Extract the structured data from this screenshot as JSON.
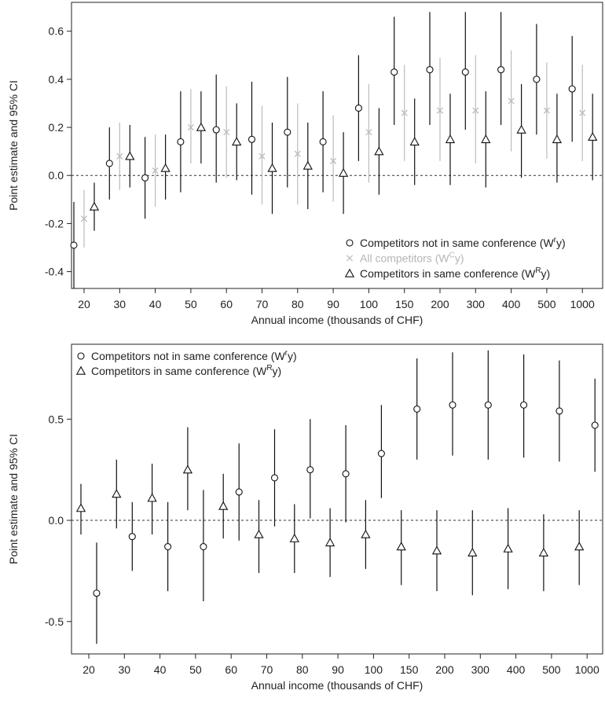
{
  "chart_data": [
    {
      "type": "errorbar",
      "xlabel": "Annual income (thousands of CHF)",
      "ylabel": "Point estimate and 95% CI",
      "ylim": [
        -0.47,
        0.72
      ],
      "yticks": [
        "-0.4",
        "-0.2",
        "0.0",
        "0.2",
        "0.4",
        "0.6"
      ],
      "categories": [
        "20",
        "30",
        "40",
        "50",
        "60",
        "70",
        "80",
        "90",
        "100",
        "150",
        "200",
        "300",
        "400",
        "500",
        "1000"
      ],
      "reference_line": 0,
      "legend_position": "bottom-right",
      "series": [
        {
          "name": "Competitors not in same conference (W",
          "name_sup": "r",
          "name_end": "y)",
          "marker": "circle",
          "color": "#111111",
          "estimate": [
            -0.29,
            0.05,
            -0.01,
            0.14,
            0.19,
            0.15,
            0.18,
            0.14,
            0.28,
            0.43,
            0.44,
            0.43,
            0.44,
            0.4,
            0.36
          ],
          "lower": [
            -0.47,
            -0.1,
            -0.18,
            -0.07,
            -0.03,
            -0.08,
            -0.05,
            -0.07,
            0.06,
            0.21,
            0.21,
            0.19,
            0.21,
            0.17,
            0.14
          ],
          "upper": [
            -0.11,
            0.2,
            0.16,
            0.35,
            0.42,
            0.39,
            0.41,
            0.35,
            0.5,
            0.66,
            0.68,
            0.68,
            0.68,
            0.63,
            0.58
          ]
        },
        {
          "name": "All competitors (W",
          "name_sup": "C",
          "name_end": "y)",
          "marker": "cross",
          "color": "#bbbbbb",
          "estimate": [
            -0.18,
            0.08,
            0.02,
            0.2,
            0.18,
            0.08,
            0.09,
            0.06,
            0.18,
            0.26,
            0.27,
            0.27,
            0.31,
            0.27,
            0.26
          ],
          "lower": [
            -0.3,
            -0.06,
            -0.13,
            0.05,
            -0.01,
            -0.12,
            -0.12,
            -0.11,
            -0.03,
            0.06,
            0.06,
            0.05,
            0.1,
            0.07,
            0.06
          ],
          "upper": [
            -0.06,
            0.22,
            0.17,
            0.36,
            0.37,
            0.29,
            0.3,
            0.25,
            0.38,
            0.46,
            0.49,
            0.5,
            0.52,
            0.47,
            0.46
          ]
        },
        {
          "name": "Competitors in same conference (W",
          "name_sup": "R",
          "name_end": "y)",
          "marker": "triangle",
          "color": "#111111",
          "estimate": [
            -0.13,
            0.08,
            0.03,
            0.2,
            0.14,
            0.03,
            0.04,
            0.01,
            0.1,
            0.14,
            0.15,
            0.15,
            0.19,
            0.15,
            0.16
          ],
          "lower": [
            -0.23,
            -0.05,
            -0.1,
            0.05,
            -0.02,
            -0.16,
            -0.14,
            -0.16,
            -0.08,
            -0.04,
            -0.04,
            -0.05,
            -0.01,
            -0.03,
            -0.02
          ],
          "upper": [
            -0.03,
            0.21,
            0.17,
            0.35,
            0.3,
            0.22,
            0.22,
            0.18,
            0.28,
            0.32,
            0.34,
            0.35,
            0.38,
            0.34,
            0.34
          ]
        }
      ]
    },
    {
      "type": "errorbar",
      "xlabel": "Annual income (thousands of CHF)",
      "ylabel": "Point estimate and 95% CI",
      "ylim": [
        -0.66,
        0.87
      ],
      "yticks": [
        "-0.5",
        "0.0",
        "0.5"
      ],
      "categories": [
        "20",
        "30",
        "40",
        "50",
        "60",
        "70",
        "80",
        "90",
        "100",
        "150",
        "200",
        "300",
        "400",
        "500",
        "1000"
      ],
      "reference_line": 0,
      "legend_position": "top-left",
      "series": [
        {
          "name": "Competitors not in same conference (W",
          "name_sup": "r",
          "name_end": "y)",
          "marker": "circle",
          "color": "#111111",
          "estimate": [
            -0.36,
            -0.08,
            -0.13,
            -0.13,
            0.14,
            0.21,
            0.25,
            0.23,
            0.33,
            0.55,
            0.57,
            0.57,
            0.57,
            0.54,
            0.47
          ],
          "lower": [
            -0.61,
            -0.25,
            -0.35,
            -0.4,
            -0.1,
            -0.03,
            0.01,
            -0.01,
            0.11,
            0.3,
            0.32,
            0.3,
            0.31,
            0.29,
            0.24
          ],
          "upper": [
            -0.11,
            0.09,
            0.09,
            0.15,
            0.38,
            0.45,
            0.5,
            0.47,
            0.57,
            0.8,
            0.83,
            0.84,
            0.82,
            0.79,
            0.7
          ]
        },
        {
          "name": "Competitors in same conference (W",
          "name_sup": "R",
          "name_end": "y)",
          "marker": "triangle",
          "color": "#111111",
          "estimate": [
            0.06,
            0.13,
            0.11,
            0.25,
            0.07,
            -0.07,
            -0.09,
            -0.11,
            -0.07,
            -0.13,
            -0.15,
            -0.16,
            -0.14,
            -0.16,
            -0.13
          ],
          "lower": [
            -0.07,
            -0.04,
            -0.07,
            0.05,
            -0.09,
            -0.26,
            -0.26,
            -0.28,
            -0.24,
            -0.32,
            -0.35,
            -0.37,
            -0.34,
            -0.35,
            -0.32
          ],
          "upper": [
            0.18,
            0.3,
            0.28,
            0.46,
            0.23,
            0.1,
            0.08,
            0.06,
            0.1,
            0.05,
            0.05,
            0.05,
            0.06,
            0.03,
            0.05
          ]
        }
      ]
    }
  ]
}
